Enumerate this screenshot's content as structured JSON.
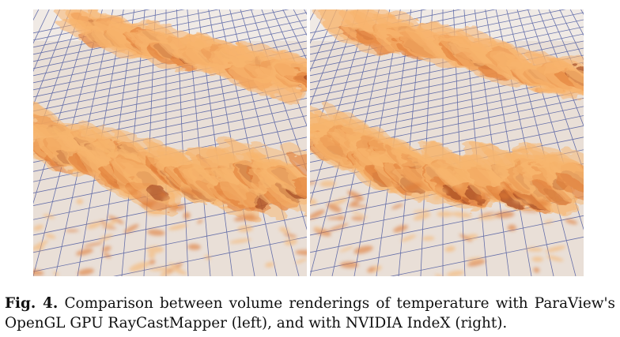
{
  "figure": {
    "panels": [
      {
        "side": "left",
        "content": "volume-rendering-paraview"
      },
      {
        "side": "right",
        "content": "volume-rendering-nvidia-index"
      }
    ],
    "caption": {
      "label": "Fig. 4.",
      "text": "Comparison between volume renderings of temperature with ParaView's OpenGL GPU RayCastMapper (left), and with NVIDIA IndeX (right)."
    }
  },
  "colors": {
    "background_plane": "#e9dfd7",
    "grid_lines": "#3a4a9a",
    "plume_light": "#f7b56e",
    "plume_mid": "#e07a34",
    "plume_dark": "#9b3f1c"
  }
}
